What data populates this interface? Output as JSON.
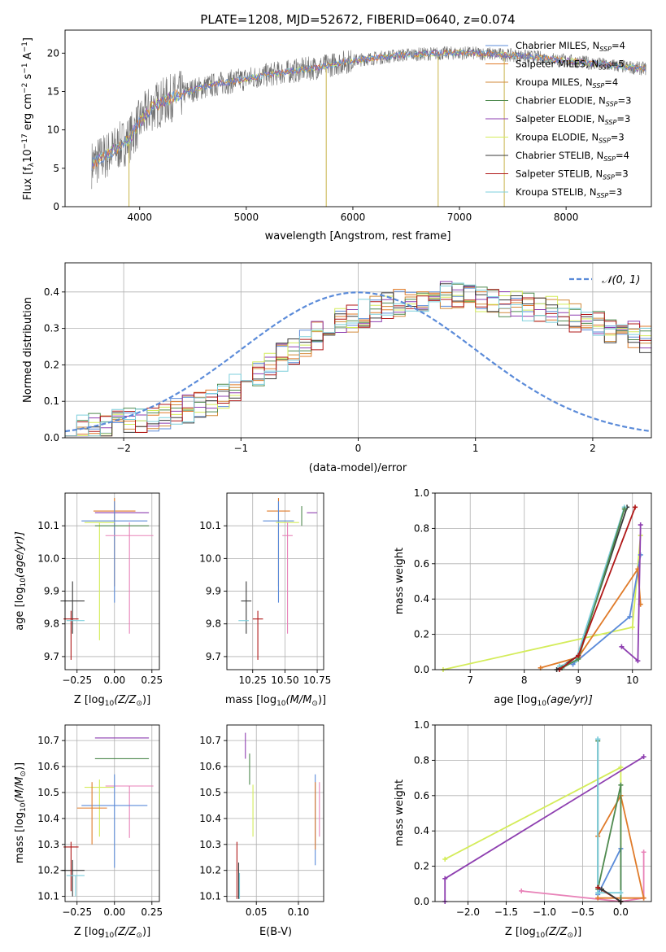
{
  "colors": {
    "chabrier_miles": "#5b8bd9",
    "salpeter_miles": "#e07b2a",
    "kroupa_miles": "#d28a3a",
    "chabrier_elodie": "#4f8a4f",
    "salpeter_elodie": "#8e3fb0",
    "kroupa_elodie": "#d4ec5a",
    "chabrier_stelib": "#3a3a3a",
    "salpeter_stelib": "#b01818",
    "kroupa_stelib": "#7ecfdc",
    "pink": "#e882b8",
    "data_gray": "#707070",
    "grid": "#b0b0b0",
    "normal": "#5b8bd9"
  },
  "chart_data": [
    {
      "id": "spectrum",
      "type": "line",
      "title": "PLATE=1208, MJD=52672, FIBERID=0640, z=0.074",
      "xlabel": "wavelength [Angstrom, rest frame]",
      "ylabel_main": "Flux [f",
      "ylabel_lambda": "λ",
      "ylabel_mid": "10",
      "ylabel_exp1": "−17",
      "ylabel_rest": " erg cm",
      "ylabel_exp2": "−2",
      "ylabel_s": " s",
      "ylabel_exp3": "−1",
      "ylabel_end": " A",
      "ylabel_exp4": "−1",
      "ylabel_close": "]",
      "xlim": [
        3300,
        8800
      ],
      "ylim": [
        0,
        23
      ],
      "xticks": [
        4000,
        5000,
        6000,
        7000,
        8000
      ],
      "xtick_labels": [
        "4000",
        "5000",
        "6000",
        "7000",
        "8000"
      ],
      "yticks": [
        0,
        5,
        10,
        15,
        20
      ],
      "ytick_labels": [
        "0",
        "5",
        "10",
        "15",
        "20"
      ],
      "legend": [
        {
          "name": "Chabrier MILES, N",
          "sub": "SSP",
          "tail": "=4"
        },
        {
          "name": "Salpeter MILES, N",
          "sub": "SSP",
          "tail": "=5"
        },
        {
          "name": "Kroupa MILES, N",
          "sub": "SSP",
          "tail": "=4"
        },
        {
          "name": "Chabrier ELODIE, N",
          "sub": "SSP",
          "tail": "=3"
        },
        {
          "name": "Salpeter ELODIE, N",
          "sub": "SSP",
          "tail": "=3"
        },
        {
          "name": "Kroupa ELODIE, N",
          "sub": "SSP",
          "tail": "=3"
        },
        {
          "name": "Chabrier STELIB, N",
          "sub": "SSP",
          "tail": "=4"
        },
        {
          "name": "Salpeter STELIB, N",
          "sub": "SSP",
          "tail": "=3"
        },
        {
          "name": "Kroupa STELIB, N",
          "sub": "SSP",
          "tail": "=3"
        }
      ],
      "legend_placement": "upper-right",
      "continuum_x": [
        3550,
        3700,
        3900,
        4000,
        4100,
        4300,
        4500,
        4700,
        4900,
        5100,
        5300,
        5500,
        5700,
        5900,
        6100,
        6300,
        6500,
        6700,
        6900,
        7100,
        7300,
        7500,
        7700,
        7900,
        8100,
        8300,
        8500,
        8700
      ],
      "continuum_y": [
        5.5,
        6.8,
        8.8,
        11.0,
        12.8,
        14.2,
        15.2,
        15.9,
        16.4,
        16.9,
        17.4,
        17.8,
        18.2,
        18.8,
        19.2,
        19.5,
        19.8,
        19.9,
        20.0,
        20.0,
        19.9,
        19.7,
        19.5,
        19.2,
        18.9,
        18.6,
        18.3,
        18.0
      ]
    },
    {
      "id": "residuals",
      "type": "histogram",
      "xlabel": "(data-model)/error",
      "ylabel": "Normed distribution",
      "xlim": [
        -2.5,
        2.5
      ],
      "ylim": [
        0,
        0.48
      ],
      "xticks": [
        -2,
        -1,
        0,
        1,
        2
      ],
      "xtick_labels": [
        "−2",
        "−1",
        "0",
        "1",
        "2"
      ],
      "yticks": [
        0,
        0.1,
        0.2,
        0.3,
        0.4
      ],
      "ytick_labels": [
        "0.0",
        "0.1",
        "0.2",
        "0.3",
        "0.4"
      ],
      "legend_label": "𝒩(0, 1)",
      "legend_placement": "upper-right",
      "bin_width": 0.1,
      "bin_start": -2.5,
      "base_values": [
        0.02,
        0.025,
        0.03,
        0.035,
        0.04,
        0.045,
        0.05,
        0.055,
        0.06,
        0.07,
        0.08,
        0.09,
        0.1,
        0.12,
        0.14,
        0.16,
        0.18,
        0.2,
        0.22,
        0.24,
        0.26,
        0.28,
        0.3,
        0.32,
        0.33,
        0.34,
        0.35,
        0.36,
        0.37,
        0.38,
        0.385,
        0.39,
        0.39,
        0.39,
        0.385,
        0.38,
        0.375,
        0.37,
        0.365,
        0.36,
        0.355,
        0.35,
        0.34,
        0.33,
        0.32,
        0.31,
        0.3,
        0.29,
        0.28,
        0.27,
        0.26,
        0.25,
        0.24,
        0.22,
        0.2,
        0.18,
        0.16,
        0.14,
        0.12,
        0.1,
        0.09,
        0.08,
        0.07,
        0.06,
        0.055,
        0.05,
        0.045,
        0.04,
        0.035,
        0.03,
        0.025,
        0.02,
        0.02
      ]
    },
    {
      "id": "age_vs_Z",
      "type": "errorbar",
      "xlabel_main": "Z [log",
      "xlabel_sub": "10",
      "xlabel_rest": "(Z/Z",
      "xlabel_sun": "⊙",
      "xlabel_close": ")]",
      "ylabel_main": "age  [log",
      "ylabel_sub": "10",
      "ylabel_rest": "(age/yr)]",
      "xlim": [
        -0.33,
        0.3
      ],
      "ylim": [
        9.66,
        10.2
      ],
      "xticks": [
        -0.25,
        0.0,
        0.25
      ],
      "xtick_labels": [
        "−0.25",
        "0.00",
        "0.25"
      ],
      "yticks": [
        9.7,
        9.8,
        9.9,
        10.0,
        10.1
      ],
      "ytick_labels": [
        "9.7",
        "9.8",
        "9.9",
        "10.0",
        "10.1"
      ],
      "points": [
        {
          "c": "salpeter_miles",
          "x": 0.0,
          "y": 10.145,
          "xe": 0.14,
          "ye": [
            0.23,
            0.04
          ]
        },
        {
          "c": "salpeter_elodie",
          "x": 0.05,
          "y": 10.14,
          "xe": 0.18,
          "ye": [
            0.0,
            0.0
          ]
        },
        {
          "c": "chabrier_miles",
          "x": 0.0,
          "y": 10.115,
          "xe": 0.22,
          "ye": [
            0.25,
            0.06
          ]
        },
        {
          "c": "kroupa_elodie",
          "x": -0.1,
          "y": 10.11,
          "xe": 0.1,
          "ye": [
            0.36,
            0.0
          ]
        },
        {
          "c": "pink",
          "x": 0.1,
          "y": 10.07,
          "xe": 0.16,
          "ye": [
            0.3,
            0.04
          ]
        },
        {
          "c": "chabrier_elodie",
          "x": 0.05,
          "y": 10.1,
          "xe": 0.18,
          "ye": [
            0.0,
            0.0
          ]
        },
        {
          "c": "chabrier_stelib",
          "x": -0.28,
          "y": 9.87,
          "xe": 0.08,
          "ye": [
            0.1,
            0.06
          ]
        },
        {
          "c": "salpeter_stelib",
          "x": -0.29,
          "y": 9.815,
          "xe": 0.05,
          "ye": [
            0.125,
            0.025
          ]
        },
        {
          "c": "kroupa_stelib",
          "x": -0.26,
          "y": 9.81,
          "xe": 0.06,
          "ye": [
            0.0,
            0.0
          ]
        }
      ]
    },
    {
      "id": "age_vs_mass",
      "type": "errorbar",
      "xlabel_main": "mass [log",
      "xlabel_sub": "10",
      "xlabel_rest": "(M/M",
      "xlabel_sun": "⊙",
      "xlabel_close": ")]",
      "xlim": [
        10.05,
        10.8
      ],
      "ylim": [
        9.66,
        10.2
      ],
      "xticks": [
        10.25,
        10.5,
        10.75
      ],
      "xtick_labels": [
        "10.25",
        "10.50",
        "10.75"
      ],
      "yticks": [
        9.7,
        9.8,
        9.9,
        10.0,
        10.1
      ],
      "ytick_labels": [
        "9.7",
        "9.8",
        "9.9",
        "10.0",
        "10.1"
      ],
      "points": [
        {
          "c": "salpeter_miles",
          "x": 10.45,
          "y": 10.145,
          "xe": 0.09,
          "ye": [
            0.23,
            0.04
          ]
        },
        {
          "c": "salpeter_elodie",
          "x": 10.71,
          "y": 10.14,
          "xe": 0.04,
          "ye": [
            0.0,
            0.0
          ]
        },
        {
          "c": "chabrier_miles",
          "x": 10.45,
          "y": 10.115,
          "xe": 0.12,
          "ye": [
            0.25,
            0.06
          ]
        },
        {
          "c": "kroupa_elodie",
          "x": 10.52,
          "y": 10.11,
          "xe": 0.09,
          "ye": [
            0.0,
            0.0
          ]
        },
        {
          "c": "pink",
          "x": 10.52,
          "y": 10.07,
          "xe": 0.04,
          "ye": [
            0.3,
            0.04
          ]
        },
        {
          "c": "chabrier_elodie",
          "x": 10.63,
          "y": 10.13,
          "xe": 0.0,
          "ye": [
            0.03,
            0.03
          ]
        },
        {
          "c": "chabrier_stelib",
          "x": 10.2,
          "y": 9.87,
          "xe": 0.04,
          "ye": [
            0.1,
            0.06
          ]
        },
        {
          "c": "salpeter_stelib",
          "x": 10.29,
          "y": 9.815,
          "xe": 0.04,
          "ye": [
            0.125,
            0.025
          ]
        },
        {
          "c": "kroupa_stelib",
          "x": 10.18,
          "y": 9.81,
          "xe": 0.04,
          "ye": [
            0.0,
            0.0
          ]
        }
      ]
    },
    {
      "id": "weight_vs_age",
      "type": "line",
      "xlabel_main": "age  [log",
      "xlabel_sub": "10",
      "xlabel_rest": "(age/yr)]",
      "ylabel": "mass weight",
      "xlim": [
        6.35,
        10.35
      ],
      "ylim": [
        0,
        1.0
      ],
      "xticks": [
        7,
        8,
        9,
        10
      ],
      "xtick_labels": [
        "7",
        "8",
        "9",
        "10"
      ],
      "yticks": [
        0,
        0.2,
        0.4,
        0.6,
        0.8,
        1.0
      ],
      "ytick_labels": [
        "0.0",
        "0.2",
        "0.4",
        "0.6",
        "0.8",
        "1.0"
      ],
      "series": [
        {
          "c": "kroupa_elodie",
          "x": [
            6.5,
            10.0,
            10.15
          ],
          "y": [
            0.0,
            0.24,
            0.76
          ]
        },
        {
          "c": "chabrier_miles",
          "x": [
            8.9,
            9.95,
            10.15
          ],
          "y": [
            0.03,
            0.3,
            0.65
          ]
        },
        {
          "c": "salpeter_miles",
          "x": [
            8.3,
            9.0,
            10.1,
            10.15
          ],
          "y": [
            0.01,
            0.07,
            0.57,
            0.37
          ]
        },
        {
          "c": "chabrier_stelib",
          "x": [
            8.6,
            9.0,
            9.9
          ],
          "y": [
            0.0,
            0.08,
            0.92
          ]
        },
        {
          "c": "kroupa_stelib",
          "x": [
            8.65,
            8.95,
            9.85
          ],
          "y": [
            0.02,
            0.05,
            0.92
          ]
        },
        {
          "c": "chabrier_elodie",
          "x": [
            8.7,
            9.0,
            9.85
          ],
          "y": [
            0.01,
            0.06,
            0.91
          ]
        },
        {
          "c": "salpeter_elodie",
          "x": [
            9.8,
            10.1,
            10.15
          ],
          "y": [
            0.13,
            0.05,
            0.82
          ]
        },
        {
          "c": "salpeter_stelib",
          "x": [
            8.65,
            9.0,
            10.05
          ],
          "y": [
            0.0,
            0.08,
            0.92
          ]
        }
      ]
    },
    {
      "id": "mass_vs_Z",
      "type": "errorbar",
      "xlabel_main": "Z [log",
      "xlabel_sub": "10",
      "xlabel_rest": "(Z/Z",
      "xlabel_sun": "⊙",
      "xlabel_close": ")]",
      "ylabel_main": "mass [log",
      "ylabel_sub": "10",
      "ylabel_rest": "(M/M",
      "ylabel_sun": "⊙",
      "ylabel_close": ")]",
      "xlim": [
        -0.33,
        0.3
      ],
      "ylim": [
        10.08,
        10.76
      ],
      "xticks": [
        -0.25,
        0.0,
        0.25
      ],
      "xtick_labels": [
        "−0.25",
        "0.00",
        "0.25"
      ],
      "yticks": [
        10.1,
        10.2,
        10.3,
        10.4,
        10.5,
        10.6,
        10.7
      ],
      "ytick_labels": [
        "10.1",
        "10.2",
        "10.3",
        "10.4",
        "10.5",
        "10.6",
        "10.7"
      ],
      "points": [
        {
          "c": "salpeter_elodie",
          "x": 0.05,
          "y": 10.71,
          "xe": 0.18,
          "ye": [
            0.0,
            0.0
          ]
        },
        {
          "c": "chabrier_elodie",
          "x": 0.05,
          "y": 10.63,
          "xe": 0.18,
          "ye": [
            0.0,
            0.0
          ]
        },
        {
          "c": "kroupa_elodie",
          "x": -0.1,
          "y": 10.52,
          "xe": 0.1,
          "ye": [
            0.19,
            0.03
          ]
        },
        {
          "c": "pink",
          "x": 0.1,
          "y": 10.525,
          "xe": 0.16,
          "ye": [
            0.2,
            0.0
          ]
        },
        {
          "c": "chabrier_miles",
          "x": 0.0,
          "y": 10.45,
          "xe": 0.22,
          "ye": [
            0.24,
            0.12
          ]
        },
        {
          "c": "salpeter_miles",
          "x": -0.15,
          "y": 10.44,
          "xe": 0.1,
          "ye": [
            0.14,
            0.1
          ]
        },
        {
          "c": "chabrier_stelib",
          "x": -0.28,
          "y": 10.2,
          "xe": 0.08,
          "ye": [
            0.1,
            0.04
          ]
        },
        {
          "c": "salpeter_stelib",
          "x": -0.29,
          "y": 10.29,
          "xe": 0.05,
          "ye": [
            0.17,
            0.02
          ]
        },
        {
          "c": "kroupa_stelib",
          "x": -0.26,
          "y": 10.18,
          "xe": 0.06,
          "ye": [
            0.08,
            0.0
          ]
        }
      ]
    },
    {
      "id": "mass_vs_ebv",
      "type": "errorbar",
      "xlabel": "E(B-V)",
      "xlim": [
        0.015,
        0.13
      ],
      "ylim": [
        10.08,
        10.76
      ],
      "xticks": [
        0.05,
        0.1
      ],
      "xtick_labels": [
        "0.05",
        "0.10"
      ],
      "yticks": [
        10.1,
        10.2,
        10.3,
        10.4,
        10.5,
        10.6,
        10.7
      ],
      "ytick_labels": [
        "10.1",
        "10.2",
        "10.3",
        "10.4",
        "10.5",
        "10.6",
        "10.7"
      ],
      "points": [
        {
          "c": "salpeter_elodie",
          "x": 0.037,
          "y": 10.68,
          "xe": 0.0,
          "ye": [
            0.05,
            0.05
          ]
        },
        {
          "c": "chabrier_elodie",
          "x": 0.042,
          "y": 10.59,
          "xe": 0.0,
          "ye": [
            0.06,
            0.06
          ]
        },
        {
          "c": "kroupa_elodie",
          "x": 0.046,
          "y": 10.43,
          "xe": 0.0,
          "ye": [
            0.1,
            0.1
          ]
        },
        {
          "c": "chabrier_miles",
          "x": 0.12,
          "y": 10.39,
          "xe": 0.0,
          "ye": [
            0.17,
            0.18
          ]
        },
        {
          "c": "salpeter_miles",
          "x": 0.12,
          "y": 10.38,
          "xe": 0.0,
          "ye": [
            0.1,
            0.16
          ]
        },
        {
          "c": "pink",
          "x": 0.125,
          "y": 10.43,
          "xe": 0.0,
          "ye": [
            0.1,
            0.11
          ]
        },
        {
          "c": "salpeter_stelib",
          "x": 0.027,
          "y": 10.2,
          "xe": 0.0,
          "ye": [
            0.11,
            0.11
          ]
        },
        {
          "c": "kroupa_stelib",
          "x": 0.03,
          "y": 10.14,
          "xe": 0.0,
          "ye": [
            0.05,
            0.05
          ]
        },
        {
          "c": "chabrier_stelib",
          "x": 0.029,
          "y": 10.16,
          "xe": 0.0,
          "ye": [
            0.07,
            0.07
          ]
        }
      ]
    },
    {
      "id": "weight_vs_Z",
      "type": "line",
      "xlabel_main": "Z [log",
      "xlabel_sub": "10",
      "xlabel_rest": "(Z/Z",
      "xlabel_sun": "⊙",
      "xlabel_close": ")]",
      "ylabel": "mass weight",
      "xlim": [
        -2.43,
        0.4
      ],
      "ylim": [
        0,
        1.0
      ],
      "xticks": [
        -2.0,
        -1.5,
        -1.0,
        -0.5,
        0.0
      ],
      "xtick_labels": [
        "−2.0",
        "−1.5",
        "−1.0",
        "−0.5",
        "0.0"
      ],
      "yticks": [
        0,
        0.2,
        0.4,
        0.6,
        0.8,
        1.0
      ],
      "ytick_labels": [
        "0.0",
        "0.2",
        "0.4",
        "0.6",
        "0.8",
        "1.0"
      ],
      "series": [
        {
          "c": "kroupa_elodie",
          "x": [
            -2.3,
            0.0,
            0.0
          ],
          "y": [
            0.24,
            0.76,
            0.0
          ]
        },
        {
          "c": "salpeter_elodie",
          "x": [
            -2.3,
            -2.3,
            0.3
          ],
          "y": [
            0.0,
            0.13,
            0.82
          ]
        },
        {
          "c": "pink",
          "x": [
            -1.3,
            0.0,
            0.3,
            0.3
          ],
          "y": [
            0.06,
            0.0,
            0.02,
            0.28
          ]
        },
        {
          "c": "chabrier_miles",
          "x": [
            -0.3,
            -0.3,
            0.0,
            0.0
          ],
          "y": [
            0.92,
            0.04,
            0.3,
            0.0
          ]
        },
        {
          "c": "salpeter_miles",
          "x": [
            -0.3,
            0.0,
            0.3,
            -0.3
          ],
          "y": [
            0.37,
            0.6,
            0.02,
            0.02
          ]
        },
        {
          "c": "chabrier_elodie",
          "x": [
            -0.3,
            -0.3,
            0.0,
            0.0
          ],
          "y": [
            0.91,
            0.07,
            0.66,
            0.0
          ]
        },
        {
          "c": "kroupa_stelib",
          "x": [
            -0.3,
            -0.3,
            0.0
          ],
          "y": [
            0.92,
            0.05,
            0.05
          ]
        },
        {
          "c": "salpeter_stelib",
          "x": [
            -0.3,
            0.0
          ],
          "y": [
            0.08,
            0.0
          ]
        },
        {
          "c": "chabrier_stelib",
          "x": [
            -0.25,
            0.0
          ],
          "y": [
            0.07,
            0.0
          ]
        }
      ]
    }
  ]
}
